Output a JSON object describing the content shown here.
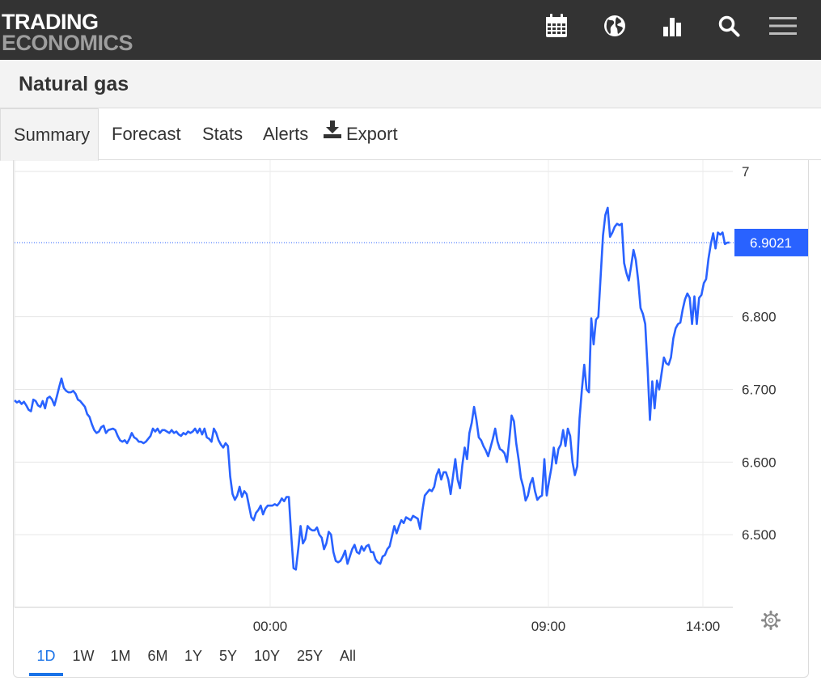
{
  "header": {
    "logo_line1": "TRADING",
    "logo_line2": "ECONOMICS",
    "icons": [
      "calendar-icon",
      "globe-icon",
      "bar-chart-icon",
      "search-icon",
      "menu-icon"
    ]
  },
  "page": {
    "title": "Natural gas"
  },
  "tabs": [
    {
      "label": "Summary",
      "active": true
    },
    {
      "label": "Forecast"
    },
    {
      "label": "Stats"
    },
    {
      "label": "Alerts"
    },
    {
      "label": "Export",
      "icon": "download-icon"
    }
  ],
  "ranges": [
    {
      "label": "1D",
      "active": true
    },
    {
      "label": "1W"
    },
    {
      "label": "1M"
    },
    {
      "label": "6M"
    },
    {
      "label": "1Y"
    },
    {
      "label": "5Y"
    },
    {
      "label": "10Y"
    },
    {
      "label": "25Y"
    },
    {
      "label": "All"
    }
  ],
  "colors": {
    "line": "#2962ff",
    "header_bg": "#333333",
    "active_range": "#1a73e8"
  },
  "chart_data": {
    "type": "line",
    "x_tick_labels": [
      "00:00",
      "09:00",
      "14:00"
    ],
    "y_tick_labels": [
      "7",
      "6.800",
      "6.700",
      "6.600",
      "6.500"
    ],
    "ylim": [
      6.4,
      7.0
    ],
    "grid": true,
    "last_value_label": "6.9021",
    "series": [
      {
        "values": [
          6.685,
          6.682,
          6.684,
          6.68,
          6.683,
          6.678,
          6.672,
          6.67,
          6.686,
          6.684,
          6.678,
          6.676,
          6.684,
          6.674,
          6.688,
          6.69,
          6.686,
          6.678,
          6.69,
          6.703,
          6.715,
          6.702,
          6.698,
          6.696,
          6.696,
          6.698,
          6.694,
          6.686,
          6.684,
          6.68,
          6.676,
          6.666,
          6.662,
          6.652,
          6.644,
          6.64,
          6.642,
          6.648,
          6.65,
          6.64,
          6.644,
          6.645,
          6.646,
          6.644,
          6.636,
          6.63,
          6.628,
          6.63,
          6.626,
          6.632,
          6.64,
          6.634,
          6.632,
          6.628,
          6.628,
          6.626,
          6.628,
          6.632,
          6.636,
          6.646,
          6.642,
          6.646,
          6.64,
          6.644,
          6.644,
          6.642,
          6.64,
          6.644,
          6.64,
          6.642,
          6.638,
          6.636,
          6.64,
          6.638,
          6.642,
          6.64,
          6.642,
          6.646,
          6.64,
          6.646,
          6.638,
          6.646,
          6.634,
          6.632,
          6.628,
          6.646,
          6.64,
          6.63,
          6.624,
          6.62,
          6.626,
          6.622,
          6.58,
          6.556,
          6.548,
          6.554,
          6.566,
          6.552,
          6.56,
          6.556,
          6.54,
          6.524,
          6.52,
          6.53,
          6.534,
          6.54,
          6.528,
          6.536,
          6.54,
          6.54,
          6.54,
          6.542,
          6.54,
          6.544,
          6.55,
          6.546,
          6.552,
          6.552,
          6.5,
          6.454,
          6.452,
          6.48,
          6.512,
          6.488,
          6.494,
          6.512,
          6.508,
          6.506,
          6.506,
          6.51,
          6.5,
          6.496,
          6.48,
          6.488,
          6.504,
          6.5,
          6.476,
          6.464,
          6.462,
          6.464,
          6.47,
          6.478,
          6.46,
          6.47,
          6.48,
          6.486,
          6.476,
          6.474,
          6.484,
          6.478,
          6.484,
          6.486,
          6.476,
          6.476,
          6.466,
          6.462,
          6.46,
          6.47,
          6.472,
          6.48,
          6.484,
          6.498,
          6.512,
          6.502,
          6.512,
          6.52,
          6.516,
          6.524,
          6.522,
          6.52,
          6.526,
          6.524,
          6.522,
          6.508,
          6.534,
          6.554,
          6.558,
          6.562,
          6.56,
          6.566,
          6.582,
          6.59,
          6.576,
          6.586,
          6.586,
          6.576,
          6.556,
          6.58,
          6.604,
          6.576,
          6.564,
          6.596,
          6.62,
          6.604,
          6.64,
          6.654,
          6.676,
          6.658,
          6.634,
          6.63,
          6.622,
          6.616,
          6.608,
          6.62,
          6.632,
          6.646,
          6.628,
          6.618,
          6.616,
          6.612,
          6.6,
          6.63,
          6.664,
          6.656,
          6.626,
          6.604,
          6.578,
          6.566,
          6.547,
          6.554,
          6.57,
          6.578,
          6.56,
          6.548,
          6.552,
          6.554,
          6.604,
          6.554,
          6.574,
          6.592,
          6.62,
          6.598,
          6.618,
          6.624,
          6.644,
          6.622,
          6.646,
          6.636,
          6.6,
          6.582,
          6.594,
          6.66,
          6.7,
          6.734,
          6.7,
          6.696,
          6.798,
          6.762,
          6.796,
          6.8,
          6.856,
          6.912,
          6.94,
          6.95,
          6.91,
          6.916,
          6.924,
          6.928,
          6.926,
          6.928,
          6.874,
          6.86,
          6.85,
          6.87,
          6.892,
          6.878,
          6.85,
          6.812,
          6.804,
          6.79,
          6.73,
          6.658,
          6.711,
          6.674,
          6.712,
          6.7,
          6.722,
          6.744,
          6.736,
          6.734,
          6.744,
          6.77,
          6.784,
          6.79,
          6.792,
          6.81,
          6.824,
          6.832,
          6.826,
          6.79,
          6.828,
          6.79,
          6.826,
          6.83,
          6.846,
          6.852,
          6.88,
          6.9,
          6.915,
          6.894,
          6.916,
          6.913,
          6.916,
          6.9,
          6.902,
          6.9021
        ]
      }
    ]
  }
}
